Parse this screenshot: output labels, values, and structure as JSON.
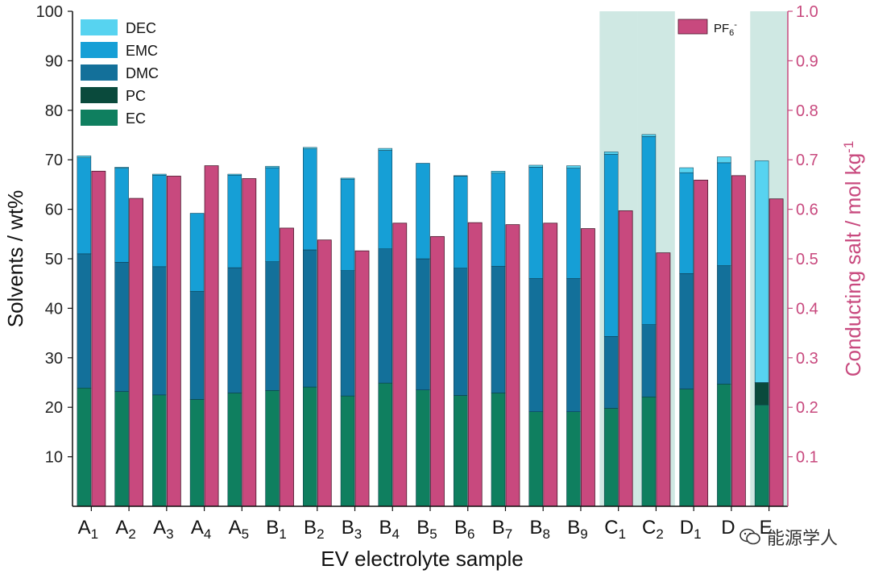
{
  "chart_data": {
    "type": "bar",
    "title": "",
    "xlabel": "EV electrolyte sample",
    "ylabel_left": "Solvents / wt%",
    "ylabel_right": "Conducting salt / mol kg",
    "ylabel_right_sup": "-1",
    "ylim_left": [
      0,
      100
    ],
    "ylim_right": [
      0,
      1.0
    ],
    "yticks_left": [
      "10",
      "20",
      "30",
      "40",
      "50",
      "60",
      "70",
      "80",
      "90",
      "100"
    ],
    "yticks_right": [
      "0.1",
      "0.2",
      "0.3",
      "0.4",
      "0.5",
      "0.6",
      "0.7",
      "0.8",
      "0.9",
      "1.0"
    ],
    "categories": [
      {
        "base": "A",
        "sub": "1"
      },
      {
        "base": "A",
        "sub": "2"
      },
      {
        "base": "A",
        "sub": "3"
      },
      {
        "base": "A",
        "sub": "4"
      },
      {
        "base": "A",
        "sub": "5"
      },
      {
        "base": "B",
        "sub": "1"
      },
      {
        "base": "B",
        "sub": "2"
      },
      {
        "base": "B",
        "sub": "3"
      },
      {
        "base": "B",
        "sub": "4"
      },
      {
        "base": "B",
        "sub": "5"
      },
      {
        "base": "B",
        "sub": "6"
      },
      {
        "base": "B",
        "sub": "7"
      },
      {
        "base": "B",
        "sub": "8"
      },
      {
        "base": "B",
        "sub": "9"
      },
      {
        "base": "C",
        "sub": "1"
      },
      {
        "base": "C",
        "sub": "2"
      },
      {
        "base": "D",
        "sub": "1"
      },
      {
        "base": "D",
        "sub": ""
      },
      {
        "base": "E",
        "sub": ""
      }
    ],
    "highlighted_categories": [
      14,
      15,
      18
    ],
    "stacked_series": [
      {
        "name": "EC",
        "color": "#0f7f5f",
        "values": [
          23.9,
          23.2,
          22.5,
          21.6,
          22.9,
          23.4,
          24.1,
          22.3,
          24.9,
          23.5,
          22.4,
          22.9,
          19.1,
          19.1,
          19.8,
          22.1,
          23.7,
          24.7,
          20.5
        ]
      },
      {
        "name": "PC",
        "color": "#0a4a3c",
        "values": [
          0,
          0,
          0,
          0,
          0,
          0,
          0,
          0,
          0,
          0,
          0,
          0,
          0,
          0,
          0,
          0,
          0,
          0,
          4.5
        ]
      },
      {
        "name": "DMC",
        "color": "#13709a",
        "values": [
          27.1,
          26.1,
          25.9,
          21.8,
          25.3,
          26.0,
          27.7,
          25.3,
          27.1,
          26.5,
          25.7,
          25.6,
          26.9,
          26.9,
          14.5,
          14.6,
          23.3,
          23.9,
          0
        ]
      },
      {
        "name": "EMC",
        "color": "#169fd6",
        "values": [
          19.4,
          19.0,
          18.5,
          15.8,
          18.7,
          19.0,
          20.4,
          18.5,
          19.9,
          19.3,
          18.6,
          18.8,
          22.5,
          22.3,
          36.8,
          38.0,
          20.4,
          20.8,
          0
        ]
      },
      {
        "name": "DEC",
        "color": "#57d3f0",
        "values": [
          0.4,
          0.2,
          0.2,
          0.0,
          0.2,
          0.3,
          0.3,
          0.2,
          0.4,
          0.0,
          0.1,
          0.4,
          0.4,
          0.5,
          0.5,
          0.4,
          1.0,
          1.2,
          44.8
        ]
      }
    ],
    "salt_series": {
      "name": "PF",
      "sub": "6",
      "sup": "-",
      "color": "#c8497e",
      "values": [
        0.677,
        0.622,
        0.667,
        0.688,
        0.662,
        0.562,
        0.538,
        0.516,
        0.572,
        0.545,
        0.573,
        0.569,
        0.572,
        0.561,
        0.597,
        0.512,
        0.659,
        0.668,
        0.621
      ]
    },
    "legend": [
      {
        "label": "DEC",
        "color": "#57d3f0"
      },
      {
        "label": "EMC",
        "color": "#169fd6"
      },
      {
        "label": "DMC",
        "color": "#13709a"
      },
      {
        "label": "PC",
        "color": "#0a4a3c"
      },
      {
        "label": "EC",
        "color": "#0f7f5f"
      }
    ],
    "highlight_color": "#cfe8e3",
    "axis_color_right": "#c8497e"
  },
  "watermark": {
    "text": "能源学人",
    "icon": "wechat-icon"
  }
}
